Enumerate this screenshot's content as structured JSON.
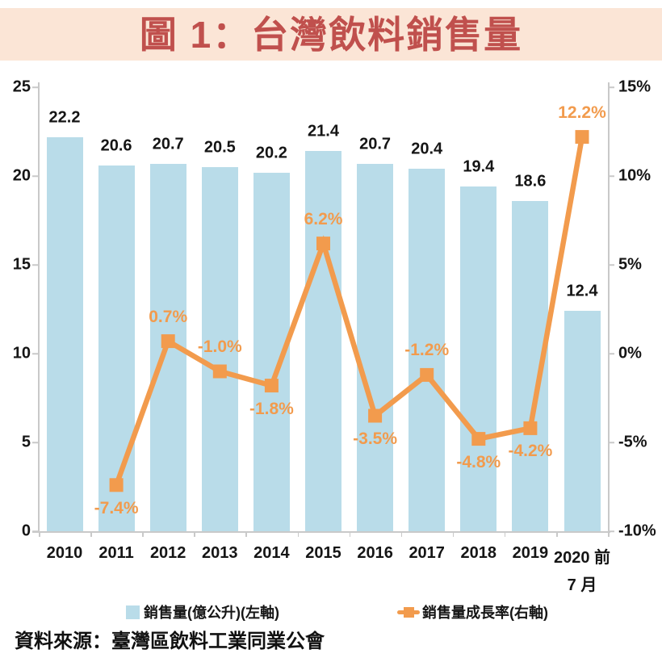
{
  "header": {
    "title": "圖 1：台灣飲料銷售量",
    "bg_color": "#FBE5D6",
    "text_color": "#C0504D"
  },
  "source": {
    "text": "資料來源：臺灣區飲料工業同業公會"
  },
  "chart_data": {
    "type": "combo-bar-line",
    "title": "圖 1：台灣飲料銷售量",
    "categories": [
      "2010",
      "2011",
      "2012",
      "2013",
      "2014",
      "2015",
      "2016",
      "2017",
      "2018",
      "2019",
      "2020 前"
    ],
    "x_axis_second_line": {
      "index": 10,
      "text": "7 月"
    },
    "series": [
      {
        "name": "銷售量(億公升)(左軸)",
        "type": "bar",
        "axis": "left",
        "color": "#B9DCE9",
        "values": [
          22.2,
          20.6,
          20.7,
          20.5,
          20.2,
          21.4,
          20.7,
          20.4,
          19.4,
          18.6,
          12.4
        ],
        "labels": [
          "22.2",
          "20.6",
          "20.7",
          "20.5",
          "20.2",
          "21.4",
          "20.7",
          "20.4",
          "19.4",
          "18.6",
          "12.4"
        ]
      },
      {
        "name": "銷售量成長率(右軸)",
        "type": "line",
        "axis": "right",
        "color": "#F29B4D",
        "values": [
          null,
          -7.4,
          0.7,
          -1.0,
          -1.8,
          6.2,
          -3.5,
          -1.2,
          -4.8,
          -4.2,
          12.2
        ],
        "labels": [
          null,
          "-7.4%",
          "0.7%",
          "-1.0%",
          "-1.8%",
          "6.2%",
          "-3.5%",
          "-1.2%",
          "-4.8%",
          "-4.2%",
          "12.2%"
        ],
        "label_positions": [
          null,
          "below",
          "above",
          "above",
          "below",
          "above",
          "below",
          "above",
          "below",
          "below",
          "above"
        ]
      }
    ],
    "left_axis": {
      "min": 0,
      "max": 25,
      "ticks": [
        "25",
        "20",
        "15",
        "10",
        "5",
        "0"
      ]
    },
    "right_axis": {
      "min": -10,
      "max": 15,
      "ticks": [
        "15%",
        "10%",
        "5%",
        "0%",
        "-5%",
        "-10%"
      ]
    },
    "grid": false,
    "legend_position": "bottom",
    "legend": [
      {
        "label": "銷售量(億公升)(左軸)",
        "marker": "square",
        "color": "#B9DCE9"
      },
      {
        "label": "銷售量成長率(右軸)",
        "marker": "line-square",
        "color": "#F29B4D"
      }
    ]
  }
}
